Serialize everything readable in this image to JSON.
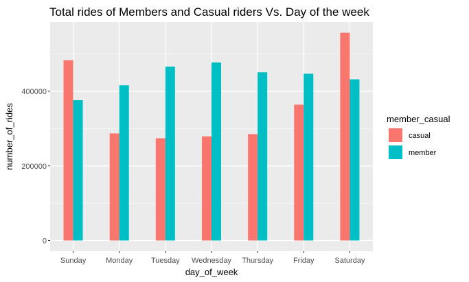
{
  "chart_data": {
    "type": "bar",
    "title": "Total rides of Members and Casual riders Vs. Day of the week",
    "xlabel": "day_of_week",
    "ylabel": "number_of_rides",
    "categories": [
      "Sunday",
      "Monday",
      "Tuesday",
      "Wednesday",
      "Thursday",
      "Friday",
      "Saturday"
    ],
    "series": [
      {
        "name": "casual",
        "color": "#F8766D",
        "values": [
          483000,
          287000,
          274000,
          279000,
          285000,
          364000,
          557000
        ]
      },
      {
        "name": "member",
        "color": "#00BFC4",
        "values": [
          376000,
          416000,
          466000,
          477000,
          451000,
          447000,
          432000
        ]
      }
    ],
    "ylim": [
      0,
      585000
    ],
    "yticks": [
      0,
      200000,
      400000
    ],
    "ytick_labels": [
      "0",
      "200000",
      "400000"
    ],
    "grid": true,
    "panel_background": "#EBEBEB",
    "legend": {
      "title": "member_casual",
      "placement": "right"
    }
  }
}
